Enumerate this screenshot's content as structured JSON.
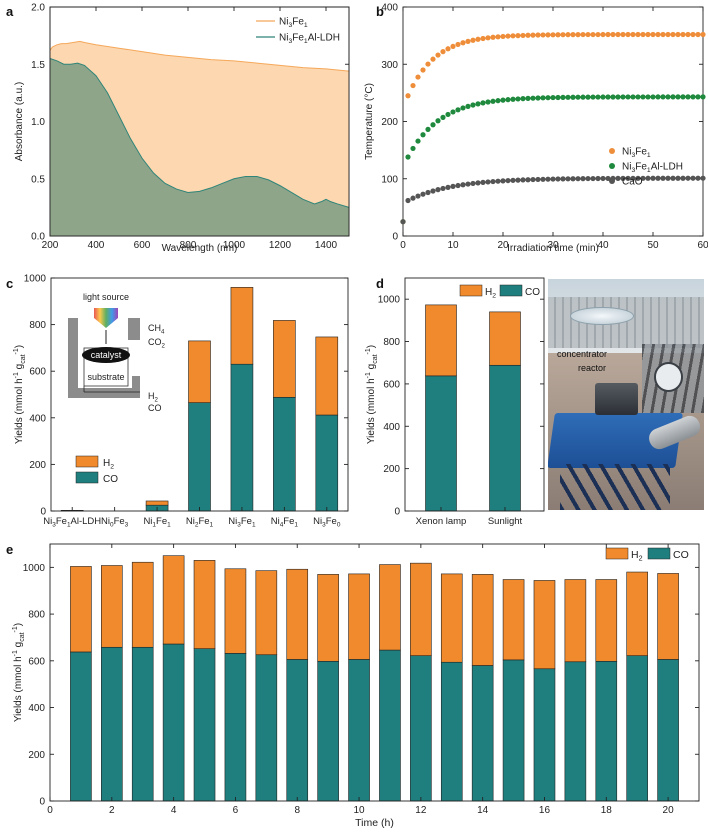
{
  "panels": {
    "a": {
      "letter": "a",
      "chart_type": "area",
      "xlabel": "Wavelength (nm)",
      "ylabel": "Absorbance (a.u.)",
      "xlim": [
        200,
        1500
      ],
      "ylim": [
        0.0,
        2.0
      ],
      "xticks": [
        200,
        400,
        600,
        800,
        1000,
        1200,
        1400
      ],
      "yticks": [
        0.0,
        0.5,
        1.0,
        1.5,
        2.0
      ],
      "ytick_labels": [
        "0.0",
        "0.5",
        "1.0",
        "1.5",
        "2.0"
      ],
      "legend": [
        {
          "base": "Ni",
          "sub": "3",
          "mid": "Fe",
          "sub2": "1",
          "tail": ""
        },
        {
          "base": "Ni",
          "sub": "3",
          "mid": "Fe",
          "sub2": "1",
          "tail": "Al-LDH"
        }
      ],
      "series": [
        {
          "name": "Ni3Fe1",
          "color": "#f5a85a",
          "fill": "#fcd7b0",
          "x": [
            200,
            210,
            230,
            250,
            270,
            300,
            330,
            350,
            400,
            500,
            600,
            700,
            800,
            900,
            1000,
            1100,
            1200,
            1300,
            1400,
            1500
          ],
          "y": [
            1.62,
            1.65,
            1.67,
            1.68,
            1.68,
            1.69,
            1.7,
            1.69,
            1.67,
            1.64,
            1.61,
            1.58,
            1.56,
            1.54,
            1.53,
            1.51,
            1.49,
            1.47,
            1.46,
            1.44
          ]
        },
        {
          "name": "Ni3Fe1Al-LDH",
          "color": "#2f8579",
          "fill": "#8fa58a",
          "x": [
            200,
            230,
            260,
            290,
            320,
            350,
            400,
            450,
            500,
            550,
            600,
            650,
            700,
            750,
            800,
            850,
            900,
            950,
            1000,
            1050,
            1100,
            1150,
            1200,
            1250,
            1300,
            1350,
            1380,
            1400,
            1420,
            1450,
            1500
          ],
          "y": [
            1.55,
            1.53,
            1.5,
            1.5,
            1.51,
            1.49,
            1.4,
            1.25,
            1.05,
            0.85,
            0.68,
            0.55,
            0.46,
            0.41,
            0.38,
            0.39,
            0.42,
            0.46,
            0.5,
            0.52,
            0.52,
            0.49,
            0.44,
            0.38,
            0.32,
            0.28,
            0.3,
            0.32,
            0.3,
            0.28,
            0.25
          ]
        }
      ]
    },
    "b": {
      "letter": "b",
      "chart_type": "scatter",
      "xlabel": "Irradiation time (min)",
      "ylabel": "Temperature (°C)",
      "xlim": [
        0,
        60
      ],
      "ylim": [
        0,
        400
      ],
      "xticks": [
        0,
        10,
        20,
        30,
        40,
        50,
        60
      ],
      "yticks": [
        0,
        100,
        200,
        300,
        400
      ],
      "legend": [
        {
          "base": "Ni",
          "sub": "3",
          "mid": "Fe",
          "sub2": "1",
          "tail": ""
        },
        {
          "base": "Ni",
          "sub": "3",
          "mid": "Fe",
          "sub2": "1",
          "tail": "Al-LDH"
        },
        {
          "base": "CaO",
          "sub": "",
          "mid": "",
          "sub2": "",
          "tail": ""
        }
      ],
      "series": [
        {
          "name": "Ni3Fe1",
          "color": "#ef8e3a",
          "start": 25,
          "plateau": 352,
          "tau": 5.5,
          "first": 245
        },
        {
          "name": "Ni3Fe1Al-LDH",
          "color": "#1f8a3d",
          "start": 25,
          "plateau": 243,
          "tau": 6.5,
          "first": 138
        },
        {
          "name": "CaO",
          "color": "#555555",
          "start": 25,
          "plateau": 101,
          "tau": 9,
          "first": 62
        }
      ]
    },
    "c": {
      "letter": "c",
      "chart_type": "bar",
      "ylabel_main": "Yields (mmol h",
      "ylabel_sup": "-1",
      "ylabel_mid": " g",
      "ylabel_sub": "cat",
      "ylabel_sup2": "-1",
      "ylabel_end": ")",
      "ylim": [
        0,
        1000
      ],
      "yticks": [
        0,
        200,
        400,
        600,
        800,
        1000
      ],
      "categories": [
        {
          "base": "Ni",
          "sub": "3",
          "mid": "Fe",
          "sub2": "1",
          "tail": "Al-LDH"
        },
        {
          "base": "Ni",
          "sub": "0",
          "mid": "Fe",
          "sub2": "3",
          "tail": ""
        },
        {
          "base": "Ni",
          "sub": "1",
          "mid": "Fe",
          "sub2": "1",
          "tail": ""
        },
        {
          "base": "Ni",
          "sub": "2",
          "mid": "Fe",
          "sub2": "1",
          "tail": ""
        },
        {
          "base": "Ni",
          "sub": "3",
          "mid": "Fe",
          "sub2": "1",
          "tail": ""
        },
        {
          "base": "Ni",
          "sub": "4",
          "mid": "Fe",
          "sub2": "1",
          "tail": ""
        },
        {
          "base": "Ni",
          "sub": "3",
          "mid": "Fe",
          "sub2": "0",
          "tail": ""
        }
      ],
      "series": [
        {
          "name": "CO",
          "color": "#1f7f7f",
          "values": [
            2,
            0,
            25,
            465,
            630,
            488,
            412
          ]
        },
        {
          "name": "H2",
          "color": "#f08a2c",
          "values": [
            1,
            0,
            18,
            265,
            330,
            330,
            335
          ]
        }
      ],
      "legend": [
        {
          "base": "H",
          "sub": "2",
          "color": "#f08a2c"
        },
        {
          "base": "CO",
          "sub": "",
          "color": "#1f7f7f"
        }
      ],
      "inset": {
        "light_source": "light source",
        "catalyst": "catalyst",
        "substrate": "substrate",
        "in1_base": "CH",
        "in1_sub": "4",
        "in2_base": "CO",
        "in2_sub": "2",
        "out1_base": "H",
        "out1_sub": "2",
        "out2_base": "CO",
        "out2_sub": ""
      }
    },
    "d": {
      "letter": "d",
      "chart_type": "bar",
      "ylim": [
        0,
        1100
      ],
      "yticks": [
        0,
        200,
        400,
        600,
        800,
        1000
      ],
      "categories": [
        "Xenon lamp",
        "Sunlight"
      ],
      "series": [
        {
          "name": "CO",
          "color": "#1f7f7f",
          "values": [
            638,
            688
          ]
        },
        {
          "name": "H2",
          "color": "#f08a2c",
          "values": [
            335,
            252
          ]
        }
      ],
      "legend": [
        {
          "base": "H",
          "sub": "2",
          "color": "#f08a2c"
        },
        {
          "base": "CO",
          "sub": "",
          "color": "#1f7f7f"
        }
      ],
      "photo_labels": {
        "concentrator": "concentrator",
        "reactor": "reactor"
      }
    },
    "e": {
      "letter": "e",
      "chart_type": "bar",
      "xlabel": "Time (h)",
      "xlim": [
        0,
        21
      ],
      "ylim": [
        0,
        1100
      ],
      "xticks": [
        0,
        2,
        4,
        6,
        8,
        10,
        12,
        14,
        16,
        18,
        20
      ],
      "yticks": [
        0,
        200,
        400,
        600,
        800,
        1000
      ],
      "categories": [
        1,
        2,
        3,
        4,
        5,
        6,
        7,
        8,
        9,
        10,
        11,
        12,
        13,
        14,
        15,
        16,
        17,
        18,
        19,
        20
      ],
      "series": [
        {
          "name": "CO",
          "color": "#1f7f7f",
          "values": [
            638,
            658,
            658,
            672,
            652,
            632,
            626,
            606,
            598,
            606,
            646,
            622,
            594,
            580,
            604,
            566,
            596,
            598,
            622,
            606
          ]
        },
        {
          "name": "H2",
          "color": "#f08a2c",
          "values": [
            366,
            350,
            364,
            378,
            378,
            362,
            360,
            386,
            372,
            366,
            366,
            396,
            378,
            390,
            344,
            378,
            352,
            350,
            358,
            368
          ]
        }
      ],
      "legend": [
        {
          "base": "H",
          "sub": "2",
          "color": "#f08a2c"
        },
        {
          "base": "CO",
          "sub": "",
          "color": "#1f7f7f"
        }
      ]
    }
  }
}
